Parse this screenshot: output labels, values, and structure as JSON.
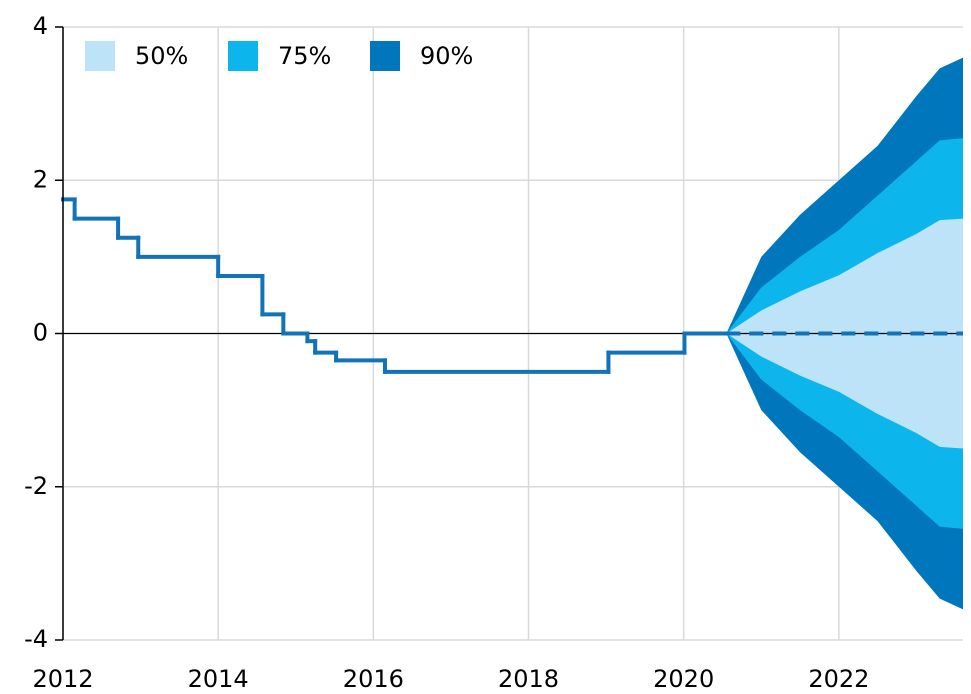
{
  "chart_data": {
    "type": "fan",
    "xlim": [
      2012,
      2023.6
    ],
    "ylim": [
      -4,
      4
    ],
    "xticks": [
      2012,
      2014,
      2016,
      2018,
      2020,
      2022
    ],
    "yticks": [
      -4,
      -2,
      0,
      2,
      4
    ],
    "grid": true,
    "legend": "top-left",
    "bands": [
      {
        "name": "90%",
        "color": "#0077bc",
        "x": [
          2020.55,
          2021,
          2021.5,
          2022,
          2022.5,
          2023,
          2023.3,
          2023.6
        ],
        "upper": [
          0,
          1.0,
          1.55,
          2.0,
          2.45,
          3.1,
          3.46,
          3.6
        ],
        "lower": [
          0,
          -1.0,
          -1.55,
          -2.0,
          -2.45,
          -3.1,
          -3.46,
          -3.6
        ]
      },
      {
        "name": "75%",
        "color": "#0cb6ec",
        "x": [
          2020.55,
          2021,
          2021.5,
          2022,
          2022.5,
          2023,
          2023.3,
          2023.6
        ],
        "upper": [
          0,
          0.6,
          1.0,
          1.35,
          1.8,
          2.25,
          2.52,
          2.55
        ],
        "lower": [
          0,
          -0.6,
          -1.0,
          -1.35,
          -1.8,
          -2.25,
          -2.52,
          -2.55
        ]
      },
      {
        "name": "50%",
        "color": "#bde3f8",
        "x": [
          2020.55,
          2021,
          2021.5,
          2022,
          2022.5,
          2023,
          2023.3,
          2023.6
        ],
        "upper": [
          0,
          0.3,
          0.55,
          0.76,
          1.05,
          1.3,
          1.48,
          1.5
        ],
        "lower": [
          0,
          -0.3,
          -0.55,
          -0.76,
          -1.05,
          -1.3,
          -1.48,
          -1.5
        ]
      }
    ],
    "series": [
      {
        "color": "#1273b9",
        "step": "post",
        "dash": false,
        "x": [
          2012,
          2012.15,
          2012.71,
          2012.97,
          2014.0,
          2014.57,
          2014.84,
          2015.15,
          2015.25,
          2015.52,
          2016.15,
          2019.03,
          2020.01,
          2020.55
        ],
        "values": [
          1.75,
          1.5,
          1.25,
          1.0,
          0.75,
          0.25,
          0,
          -0.1,
          -0.25,
          -0.35,
          -0.5,
          -0.25,
          0,
          0
        ]
      },
      {
        "color": "#1273b9",
        "step": "none",
        "dash": true,
        "x": [
          2020.55,
          2023.6
        ],
        "values": [
          0,
          0
        ]
      }
    ]
  }
}
